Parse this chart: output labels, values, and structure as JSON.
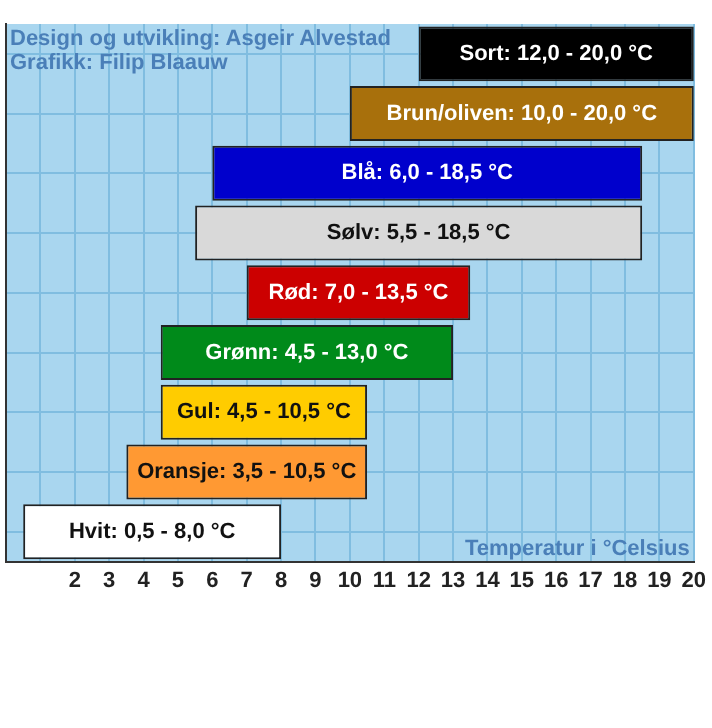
{
  "chart_data": {
    "type": "bar",
    "orientation": "horizontal",
    "xlabel": "Temperatur i °Celsius",
    "annotations": [
      "Design og utvikling: Asgeir Alvestad",
      "Grafikk: Filip Blaauw"
    ],
    "categories": [
      null,
      null,
      null,
      null,
      null,
      null,
      null,
      null,
      null
    ],
    "base": [
      12.0,
      10.0,
      6.0,
      5.5,
      7.0,
      4.5,
      4.5,
      3.5,
      0.5
    ],
    "values": [
      8.0,
      10.0,
      12.5,
      13.0,
      6.5,
      8.5,
      6.0,
      7.0,
      7.5
    ],
    "colors": [
      "#000000",
      "#a8700c",
      "#0000cc",
      "#d9d9d9",
      "#cc0000",
      "#008a1a",
      "#ffcc00",
      "#ff9933",
      "#ffffff"
    ],
    "value_labels": [
      "Sort: 12,0 - 20,0 °C",
      "Brun/oliven: 10,0 - 20,0 °C",
      "Blå: 6,0 - 18,5 °C",
      "Sølv: 5,5 - 18,5 °C",
      "Rød: 7,0 - 13,5 °C",
      "Grønn: 4,5 - 13,0 °C",
      "Gul: 4,5 - 10,5 °C",
      "Oransje: 3,5 - 10,5 °C",
      "Hvit: 0,5 - 8,0 °C"
    ],
    "xlim": [
      0,
      20
    ],
    "xticks": [
      {
        "value": 0,
        "label": null
      },
      {
        "value": 1,
        "label": null
      },
      2,
      3,
      4,
      5,
      6,
      7,
      8,
      9,
      10,
      11,
      12,
      13,
      14,
      15,
      16,
      17,
      18,
      19,
      20
    ],
    "grid": true,
    "tick_labels": "x",
    "legend": false
  }
}
